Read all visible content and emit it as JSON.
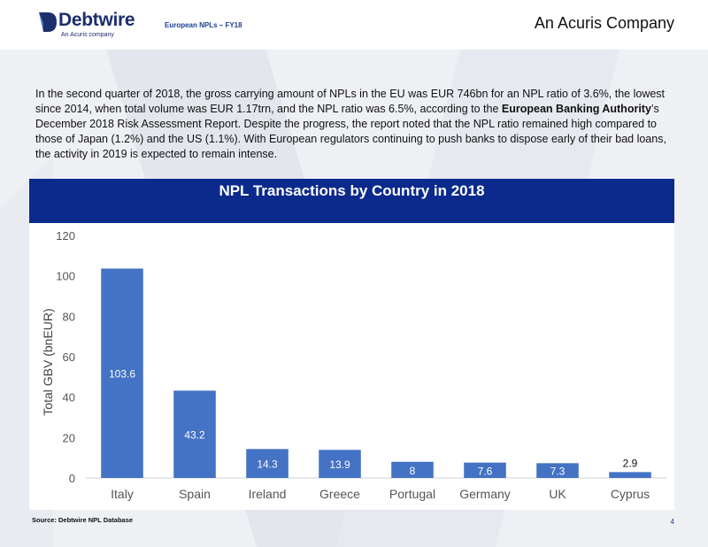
{
  "header": {
    "logo_name": "Debtwire",
    "logo_tagline": "An Acuris company",
    "report_title": "European NPLs – FY18",
    "company": "An Acuris Company"
  },
  "intro": {
    "part1": "In the second quarter of 2018, the gross carrying amount of NPLs in the EU was EUR 746bn for an NPL ratio of 3.6%, the lowest since 2014, when total volume was EUR 1.17trn, and the NPL ratio was 6.5%, according to the ",
    "bold": "European Banking Authority",
    "part2": "’s December 2018 Risk Assessment Report. Despite the progress, the report noted that the NPL ratio remained high compared to those of Japan (1.2%) and the US (1.1%). With European regulators continuing to push banks to dispose early of their bad loans, the activity in 2019 is expected to remain intense."
  },
  "chart_data": {
    "type": "bar",
    "title": "NPL Transactions by Country in 2018",
    "ylabel": "Total GBV (bnEUR)",
    "xlabel": "",
    "categories": [
      "Italy",
      "Spain",
      "Ireland",
      "Greece",
      "Portugal",
      "Germany",
      "UK",
      "Cyprus"
    ],
    "values": [
      103.6,
      43.2,
      14.3,
      13.9,
      8,
      7.6,
      7.3,
      2.9
    ],
    "data_labels": [
      "103.6",
      "43.2",
      "14.3",
      "13.9",
      "8",
      "7.6",
      "7.3",
      "2.9"
    ],
    "ylim": [
      0,
      120
    ],
    "yticks": [
      0,
      20,
      40,
      60,
      80,
      100,
      120
    ],
    "grid": false,
    "legend": "none",
    "bar_color": "#4472c4",
    "header_color": "#0b2a8c"
  },
  "footer": {
    "source": "Source: Debtwire NPL Database",
    "page": "4"
  }
}
